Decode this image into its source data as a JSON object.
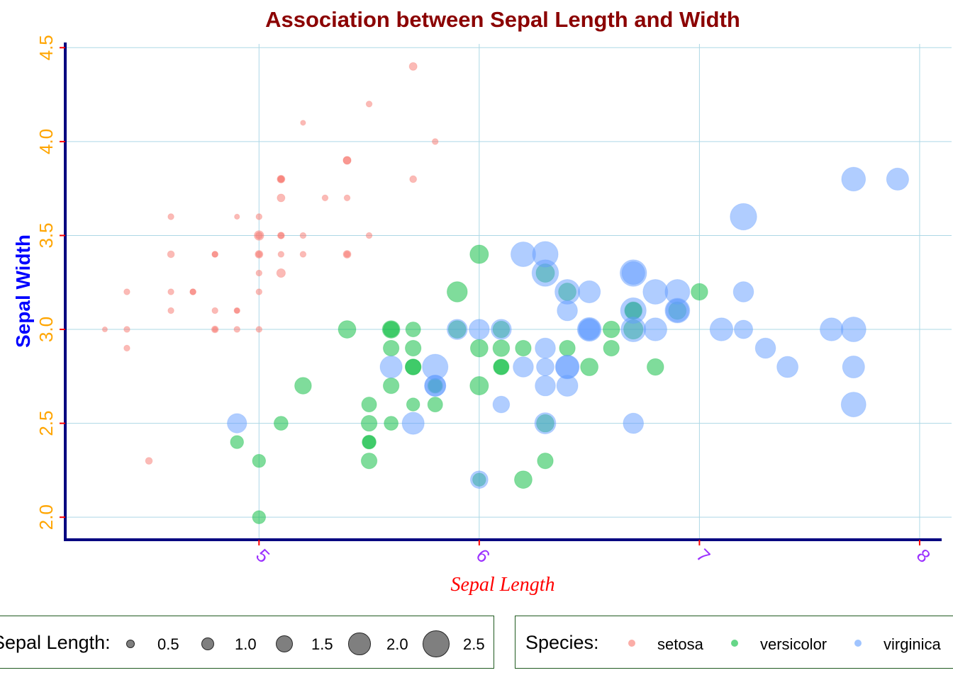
{
  "chart_data": {
    "type": "scatter",
    "title": "Association between Sepal Length and Width",
    "xlabel": "Sepal Length",
    "ylabel": "Sepal Width",
    "xlim": [
      4.12,
      8.1
    ],
    "ylim": [
      1.88,
      4.52
    ],
    "x_ticks": [
      {
        "value": 5,
        "label": "5"
      },
      {
        "value": 6,
        "label": "6"
      },
      {
        "value": 7,
        "label": "7"
      },
      {
        "value": 8,
        "label": "8"
      }
    ],
    "y_ticks": [
      {
        "value": 2.0,
        "label": "2.0"
      },
      {
        "value": 2.5,
        "label": "2.5"
      },
      {
        "value": 3.0,
        "label": "3.0"
      },
      {
        "value": 3.5,
        "label": "3.5"
      },
      {
        "value": 4.0,
        "label": "4.0"
      },
      {
        "value": 4.5,
        "label": "4.5"
      }
    ],
    "grid": true,
    "colors": {
      "title": "#8B0000",
      "xlabel": "#FF0000",
      "ylabel": "#0000FF",
      "x_ticks": "#9B30FF",
      "y_ticks": "#FFA500",
      "axis_line": "#000080",
      "grid": "#ADD8E6"
    },
    "size_encoding": "Petal.Width",
    "size_legend": {
      "title": "Sepal Length:",
      "items": [
        {
          "value": 0.5,
          "label": "0.5"
        },
        {
          "value": 1.0,
          "label": "1.0"
        },
        {
          "value": 1.5,
          "label": "1.5"
        },
        {
          "value": 2.0,
          "label": "2.0"
        },
        {
          "value": 2.5,
          "label": "2.5"
        }
      ]
    },
    "legend": {
      "title": "Species:",
      "position": "bottom",
      "items": [
        {
          "name": "setosa",
          "color": "#F8766D"
        },
        {
          "name": "versicolor",
          "color": "#00BA38"
        },
        {
          "name": "virginica",
          "color": "#619CFF"
        }
      ]
    },
    "series": [
      {
        "name": "setosa",
        "color": "#F8766D",
        "points": [
          [
            5.1,
            3.5,
            0.2
          ],
          [
            4.9,
            3.0,
            0.2
          ],
          [
            4.7,
            3.2,
            0.2
          ],
          [
            4.6,
            3.1,
            0.2
          ],
          [
            5.0,
            3.6,
            0.2
          ],
          [
            5.4,
            3.9,
            0.4
          ],
          [
            4.6,
            3.4,
            0.3
          ],
          [
            5.0,
            3.4,
            0.2
          ],
          [
            4.4,
            2.9,
            0.2
          ],
          [
            4.9,
            3.1,
            0.1
          ],
          [
            5.4,
            3.7,
            0.2
          ],
          [
            4.8,
            3.4,
            0.2
          ],
          [
            4.8,
            3.0,
            0.1
          ],
          [
            4.3,
            3.0,
            0.1
          ],
          [
            5.8,
            4.0,
            0.2
          ],
          [
            5.7,
            4.4,
            0.4
          ],
          [
            5.4,
            3.9,
            0.4
          ],
          [
            5.1,
            3.5,
            0.3
          ],
          [
            5.7,
            3.8,
            0.3
          ],
          [
            5.1,
            3.8,
            0.3
          ],
          [
            5.4,
            3.4,
            0.2
          ],
          [
            5.1,
            3.7,
            0.4
          ],
          [
            4.6,
            3.6,
            0.2
          ],
          [
            5.1,
            3.3,
            0.5
          ],
          [
            4.8,
            3.4,
            0.2
          ],
          [
            5.0,
            3.0,
            0.2
          ],
          [
            5.0,
            3.4,
            0.4
          ],
          [
            5.2,
            3.5,
            0.2
          ],
          [
            5.2,
            3.4,
            0.2
          ],
          [
            4.7,
            3.2,
            0.2
          ],
          [
            4.8,
            3.1,
            0.2
          ],
          [
            5.4,
            3.4,
            0.4
          ],
          [
            5.2,
            4.1,
            0.1
          ],
          [
            5.5,
            4.2,
            0.2
          ],
          [
            4.9,
            3.1,
            0.2
          ],
          [
            5.0,
            3.2,
            0.2
          ],
          [
            5.5,
            3.5,
            0.2
          ],
          [
            4.9,
            3.6,
            0.1
          ],
          [
            4.4,
            3.0,
            0.2
          ],
          [
            5.1,
            3.4,
            0.2
          ],
          [
            5.0,
            3.5,
            0.3
          ],
          [
            4.5,
            2.3,
            0.3
          ],
          [
            4.4,
            3.2,
            0.2
          ],
          [
            5.0,
            3.5,
            0.6
          ],
          [
            5.1,
            3.8,
            0.4
          ],
          [
            4.8,
            3.0,
            0.3
          ],
          [
            5.1,
            3.8,
            0.2
          ],
          [
            4.6,
            3.2,
            0.2
          ],
          [
            5.3,
            3.7,
            0.2
          ],
          [
            5.0,
            3.3,
            0.2
          ]
        ]
      },
      {
        "name": "versicolor",
        "color": "#00BA38",
        "points": [
          [
            7.0,
            3.2,
            1.4
          ],
          [
            6.4,
            3.2,
            1.5
          ],
          [
            6.9,
            3.1,
            1.5
          ],
          [
            5.5,
            2.3,
            1.3
          ],
          [
            6.5,
            2.8,
            1.5
          ],
          [
            5.7,
            2.8,
            1.3
          ],
          [
            6.3,
            3.3,
            1.6
          ],
          [
            4.9,
            2.4,
            1.0
          ],
          [
            6.6,
            2.9,
            1.3
          ],
          [
            5.2,
            2.7,
            1.4
          ],
          [
            5.0,
            2.0,
            1.0
          ],
          [
            5.9,
            3.0,
            1.5
          ],
          [
            6.0,
            2.2,
            1.0
          ],
          [
            6.1,
            2.9,
            1.4
          ],
          [
            5.6,
            2.9,
            1.3
          ],
          [
            6.7,
            3.1,
            1.4
          ],
          [
            5.6,
            3.0,
            1.5
          ],
          [
            5.8,
            2.7,
            1.0
          ],
          [
            6.2,
            2.2,
            1.5
          ],
          [
            5.6,
            2.5,
            1.1
          ],
          [
            5.9,
            3.2,
            1.8
          ],
          [
            6.1,
            2.8,
            1.3
          ],
          [
            6.3,
            2.5,
            1.5
          ],
          [
            6.1,
            2.8,
            1.2
          ],
          [
            6.4,
            2.9,
            1.3
          ],
          [
            6.6,
            3.0,
            1.4
          ],
          [
            6.8,
            2.8,
            1.4
          ],
          [
            6.7,
            3.0,
            1.7
          ],
          [
            6.0,
            2.9,
            1.5
          ],
          [
            5.7,
            2.6,
            1.0
          ],
          [
            5.5,
            2.4,
            1.1
          ],
          [
            5.5,
            2.4,
            1.0
          ],
          [
            5.8,
            2.7,
            1.2
          ],
          [
            6.0,
            2.7,
            1.6
          ],
          [
            5.4,
            3.0,
            1.5
          ],
          [
            6.0,
            3.4,
            1.6
          ],
          [
            6.7,
            3.1,
            1.5
          ],
          [
            6.3,
            2.3,
            1.3
          ],
          [
            5.6,
            3.0,
            1.3
          ],
          [
            5.5,
            2.5,
            1.3
          ],
          [
            5.5,
            2.6,
            1.2
          ],
          [
            6.1,
            3.0,
            1.4
          ],
          [
            5.8,
            2.6,
            1.2
          ],
          [
            5.0,
            2.3,
            1.0
          ],
          [
            5.6,
            2.7,
            1.3
          ],
          [
            5.7,
            3.0,
            1.2
          ],
          [
            5.7,
            2.9,
            1.3
          ],
          [
            6.2,
            2.9,
            1.3
          ],
          [
            5.1,
            2.5,
            1.1
          ],
          [
            5.7,
            2.8,
            1.3
          ]
        ]
      },
      {
        "name": "virginica",
        "color": "#619CFF",
        "points": [
          [
            6.3,
            3.3,
            2.5
          ],
          [
            5.8,
            2.7,
            1.9
          ],
          [
            7.1,
            3.0,
            2.1
          ],
          [
            6.3,
            2.9,
            1.8
          ],
          [
            6.5,
            3.0,
            2.2
          ],
          [
            7.6,
            3.0,
            2.1
          ],
          [
            4.9,
            2.5,
            1.7
          ],
          [
            7.3,
            2.9,
            1.8
          ],
          [
            6.7,
            2.5,
            1.8
          ],
          [
            7.2,
            3.6,
            2.5
          ],
          [
            6.5,
            3.2,
            2.0
          ],
          [
            6.4,
            2.7,
            1.9
          ],
          [
            6.8,
            3.0,
            2.1
          ],
          [
            5.7,
            2.5,
            2.0
          ],
          [
            5.8,
            2.8,
            2.4
          ],
          [
            6.4,
            3.2,
            2.3
          ],
          [
            6.5,
            3.0,
            1.8
          ],
          [
            7.7,
            3.8,
            2.2
          ],
          [
            7.7,
            2.6,
            2.3
          ],
          [
            6.0,
            2.2,
            1.5
          ],
          [
            6.9,
            3.2,
            2.3
          ],
          [
            5.6,
            2.8,
            2.0
          ],
          [
            7.7,
            2.8,
            2.0
          ],
          [
            6.3,
            2.7,
            1.8
          ],
          [
            6.7,
            3.3,
            2.1
          ],
          [
            7.2,
            3.2,
            1.8
          ],
          [
            6.2,
            2.8,
            1.8
          ],
          [
            6.1,
            3.0,
            1.8
          ],
          [
            6.4,
            2.8,
            2.1
          ],
          [
            7.2,
            3.0,
            1.6
          ],
          [
            7.4,
            2.8,
            1.9
          ],
          [
            7.9,
            3.8,
            2.0
          ],
          [
            6.4,
            2.8,
            2.2
          ],
          [
            6.3,
            2.8,
            1.5
          ],
          [
            6.1,
            2.6,
            1.4
          ],
          [
            7.7,
            3.0,
            2.3
          ],
          [
            6.3,
            3.4,
            2.4
          ],
          [
            6.4,
            3.1,
            1.8
          ],
          [
            6.0,
            3.0,
            1.8
          ],
          [
            6.9,
            3.1,
            2.1
          ],
          [
            6.7,
            3.1,
            2.4
          ],
          [
            6.9,
            3.1,
            2.3
          ],
          [
            5.8,
            2.7,
            1.9
          ],
          [
            6.8,
            3.2,
            2.3
          ],
          [
            6.7,
            3.3,
            2.5
          ],
          [
            6.7,
            3.0,
            2.3
          ],
          [
            6.3,
            2.5,
            1.9
          ],
          [
            6.5,
            3.0,
            2.0
          ],
          [
            6.2,
            3.4,
            2.3
          ],
          [
            5.9,
            3.0,
            1.8
          ]
        ]
      }
    ]
  }
}
